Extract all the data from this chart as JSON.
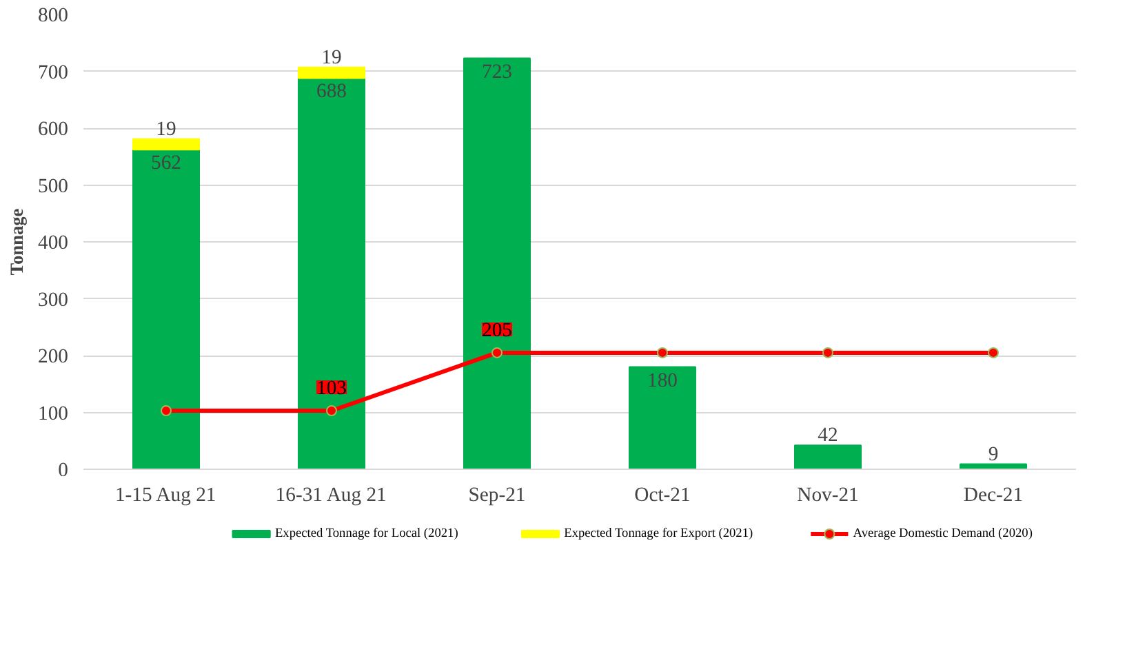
{
  "chart_data": {
    "type": "bar",
    "ylabel": "Tonnage",
    "categories": [
      "1-15 Aug 21",
      "16-31 Aug 21",
      "Sep-21",
      "Oct-21",
      "Nov-21",
      "Dec-21"
    ],
    "stacked": true,
    "ylim": [
      0,
      800
    ],
    "yticks": [
      0,
      100,
      200,
      300,
      400,
      500,
      600,
      700,
      800
    ],
    "grid": "y",
    "legend": "bottom",
    "series": [
      {
        "name": "Expected Tonnage for Local (2021)",
        "color": "#00b050",
        "values": [
          562,
          688,
          723,
          180,
          42,
          9
        ],
        "value_labels": [
          "562",
          "688",
          "723",
          "180",
          "42",
          "9"
        ]
      },
      {
        "name": "Expected Tonnage for Export (2021)",
        "color": "#ffff00",
        "values": [
          19,
          19,
          null,
          null,
          null,
          null
        ],
        "value_labels": [
          "19",
          "19",
          null,
          null,
          null,
          null
        ]
      },
      {
        "name": "Average Domestic Demand (2020)",
        "type": "line",
        "color": "#ff0000",
        "marker": "circle",
        "values": [
          103,
          103,
          205,
          205,
          205,
          205
        ],
        "value_labels": [
          null,
          "103",
          "205",
          null,
          null,
          null
        ]
      }
    ]
  }
}
